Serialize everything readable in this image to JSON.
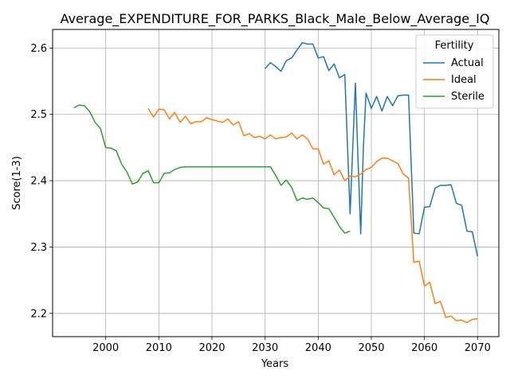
{
  "chart_data": {
    "type": "line",
    "title": "Average_EXPENDITURE_FOR_PARKS_Black_Male_Below_Average_IQ",
    "xlabel": "Years",
    "ylabel": "Score(1-3)",
    "xlim": [
      1990,
      2074
    ],
    "ylim": [
      2.165,
      2.628
    ],
    "xticks": [
      2000,
      2010,
      2020,
      2030,
      2040,
      2050,
      2060,
      2070
    ],
    "yticks": [
      2.2,
      2.3,
      2.4,
      2.5,
      2.6
    ],
    "grid": true,
    "legend": {
      "title": "Fertility",
      "position": "top-right"
    },
    "series": [
      {
        "name": "Actual",
        "color": "#1f77b4",
        "points": [
          [
            2030,
            2.569
          ],
          [
            2031,
            2.578
          ],
          [
            2032,
            2.572
          ],
          [
            2033,
            2.565
          ],
          [
            2034,
            2.581
          ],
          [
            2035,
            2.585
          ],
          [
            2036,
            2.597
          ],
          [
            2037,
            2.608
          ],
          [
            2038,
            2.606
          ],
          [
            2039,
            2.606
          ],
          [
            2040,
            2.585
          ],
          [
            2041,
            2.587
          ],
          [
            2042,
            2.566
          ],
          [
            2043,
            2.576
          ],
          [
            2044,
            2.555
          ],
          [
            2045,
            2.56
          ],
          [
            2046,
            2.35
          ],
          [
            2046.5,
            2.45
          ],
          [
            2047,
            2.547
          ],
          [
            2047.5,
            2.43
          ],
          [
            2048,
            2.32
          ],
          [
            2048.5,
            2.45
          ],
          [
            2049,
            2.532
          ],
          [
            2050,
            2.509
          ],
          [
            2051,
            2.527
          ],
          [
            2052,
            2.505
          ],
          [
            2053,
            2.527
          ],
          [
            2054,
            2.513
          ],
          [
            2055,
            2.528
          ],
          [
            2056,
            2.529
          ],
          [
            2057,
            2.529
          ],
          [
            2058,
            2.321
          ],
          [
            2059,
            2.32
          ],
          [
            2060,
            2.36
          ],
          [
            2061,
            2.361
          ],
          [
            2062,
            2.389
          ],
          [
            2063,
            2.393
          ],
          [
            2064,
            2.393
          ],
          [
            2065,
            2.394
          ],
          [
            2066,
            2.366
          ],
          [
            2067,
            2.363
          ],
          [
            2068,
            2.324
          ],
          [
            2069,
            2.323
          ],
          [
            2070,
            2.286
          ]
        ]
      },
      {
        "name": "Ideal",
        "color": "#ff7f0e",
        "points": [
          [
            2008,
            2.509
          ],
          [
            2009,
            2.496
          ],
          [
            2010,
            2.508
          ],
          [
            2011,
            2.507
          ],
          [
            2012,
            2.493
          ],
          [
            2013,
            2.503
          ],
          [
            2014,
            2.488
          ],
          [
            2015,
            2.497
          ],
          [
            2016,
            2.486
          ],
          [
            2017,
            2.489
          ],
          [
            2018,
            2.489
          ],
          [
            2019,
            2.495
          ],
          [
            2020,
            2.492
          ],
          [
            2021,
            2.49
          ],
          [
            2022,
            2.488
          ],
          [
            2023,
            2.493
          ],
          [
            2024,
            2.484
          ],
          [
            2025,
            2.489
          ],
          [
            2026,
            2.468
          ],
          [
            2027,
            2.471
          ],
          [
            2028,
            2.465
          ],
          [
            2029,
            2.467
          ],
          [
            2030,
            2.463
          ],
          [
            2031,
            2.469
          ],
          [
            2032,
            2.463
          ],
          [
            2033,
            2.465
          ],
          [
            2034,
            2.466
          ],
          [
            2035,
            2.472
          ],
          [
            2036,
            2.463
          ],
          [
            2037,
            2.469
          ],
          [
            2038,
            2.463
          ],
          [
            2039,
            2.448
          ],
          [
            2040,
            2.448
          ],
          [
            2041,
            2.425
          ],
          [
            2042,
            2.43
          ],
          [
            2043,
            2.409
          ],
          [
            2044,
            2.416
          ],
          [
            2045,
            2.4
          ],
          [
            2046,
            2.407
          ],
          [
            2047,
            2.406
          ],
          [
            2048,
            2.41
          ],
          [
            2049,
            2.417
          ],
          [
            2050,
            2.42
          ],
          [
            2051,
            2.429
          ],
          [
            2052,
            2.434
          ],
          [
            2053,
            2.434
          ],
          [
            2054,
            2.43
          ],
          [
            2055,
            2.426
          ],
          [
            2056,
            2.41
          ],
          [
            2057,
            2.404
          ],
          [
            2058,
            2.277
          ],
          [
            2059,
            2.279
          ],
          [
            2060,
            2.241
          ],
          [
            2061,
            2.247
          ],
          [
            2062,
            2.215
          ],
          [
            2063,
            2.218
          ],
          [
            2064,
            2.194
          ],
          [
            2065,
            2.196
          ],
          [
            2066,
            2.189
          ],
          [
            2067,
            2.19
          ],
          [
            2068,
            2.186
          ],
          [
            2069,
            2.191
          ],
          [
            2070,
            2.192
          ]
        ]
      },
      {
        "name": "Sterile",
        "color": "#2ca02c",
        "points": [
          [
            1994,
            2.51
          ],
          [
            1995,
            2.514
          ],
          [
            1996,
            2.513
          ],
          [
            1997,
            2.504
          ],
          [
            1998,
            2.488
          ],
          [
            1999,
            2.479
          ],
          [
            2000,
            2.45
          ],
          [
            2001,
            2.449
          ],
          [
            2002,
            2.445
          ],
          [
            2003,
            2.425
          ],
          [
            2004,
            2.413
          ],
          [
            2005,
            2.395
          ],
          [
            2006,
            2.398
          ],
          [
            2007,
            2.411
          ],
          [
            2008,
            2.415
          ],
          [
            2009,
            2.397
          ],
          [
            2010,
            2.397
          ],
          [
            2011,
            2.411
          ],
          [
            2012,
            2.412
          ],
          [
            2013,
            2.417
          ],
          [
            2014,
            2.42
          ],
          [
            2015,
            2.421
          ],
          [
            2016,
            2.421
          ],
          [
            2020,
            2.421
          ],
          [
            2025,
            2.421
          ],
          [
            2030,
            2.421
          ],
          [
            2031,
            2.421
          ],
          [
            2032,
            2.408
          ],
          [
            2033,
            2.393
          ],
          [
            2034,
            2.401
          ],
          [
            2035,
            2.39
          ],
          [
            2036,
            2.37
          ],
          [
            2037,
            2.374
          ],
          [
            2038,
            2.372
          ],
          [
            2039,
            2.374
          ],
          [
            2040,
            2.367
          ],
          [
            2041,
            2.359
          ],
          [
            2042,
            2.358
          ],
          [
            2043,
            2.345
          ],
          [
            2044,
            2.331
          ],
          [
            2045,
            2.321
          ],
          [
            2046,
            2.324
          ]
        ]
      }
    ]
  }
}
